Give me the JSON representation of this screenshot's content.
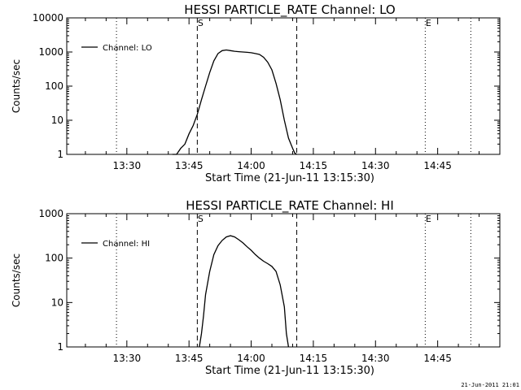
{
  "footer_text": "21-Jun-2011 21:01",
  "chart_data": [
    {
      "type": "line",
      "title": "HESSI PARTICLE_RATE Channel: LO",
      "xlabel": "Start Time (21-Jun-11 13:15:30)",
      "ylabel": "Counts/sec",
      "yscale": "log",
      "xlim": [
        "13:15:30",
        "15:00:00"
      ],
      "ylim": [
        1,
        10000
      ],
      "xticks": [
        "13:30",
        "13:45",
        "14:00",
        "14:15",
        "14:30",
        "14:45"
      ],
      "yticks": [
        "1",
        "10",
        "100",
        "1000",
        "10000"
      ],
      "legend": "top-left",
      "legend_label": "Channel: LO",
      "markers": [
        {
          "label": "",
          "time": "13:27:30",
          "style": "dotted"
        },
        {
          "label": "S",
          "time": "13:47:00",
          "style": "dashed"
        },
        {
          "label": "",
          "time": "14:11:00",
          "style": "dashed"
        },
        {
          "label": "E",
          "time": "14:42:00",
          "style": "dotted"
        },
        {
          "label": "",
          "time": "14:53:00",
          "style": "dotted"
        }
      ],
      "series": [
        {
          "name": "Channel: LO",
          "x": [
            "13:41:00",
            "13:42:00",
            "13:43:00",
            "13:44:00",
            "13:45:00",
            "13:46:00",
            "13:47:00",
            "13:48:00",
            "13:49:00",
            "13:50:00",
            "13:51:00",
            "13:52:00",
            "13:53:00",
            "13:54:00",
            "13:55:00",
            "13:56:00",
            "13:57:00",
            "13:58:00",
            "13:59:00",
            "14:00:00",
            "14:01:00",
            "14:02:00",
            "14:03:00",
            "14:04:00",
            "14:05:00",
            "14:06:00",
            "14:07:00",
            "14:08:00",
            "14:09:00",
            "14:10:00",
            "14:10:30",
            "14:11:00"
          ],
          "values": [
            1.0,
            1.0,
            1.5,
            2.0,
            4.0,
            7.0,
            15,
            40,
            100,
            250,
            550,
            900,
            1100,
            1150,
            1100,
            1050,
            1020,
            1000,
            980,
            950,
            900,
            850,
            700,
            500,
            300,
            120,
            40,
            10,
            3,
            1.5,
            1.1,
            1.0
          ]
        }
      ]
    },
    {
      "type": "line",
      "title": "HESSI PARTICLE_RATE Channel: HI",
      "xlabel": "Start Time (21-Jun-11 13:15:30)",
      "ylabel": "Counts/sec",
      "yscale": "log",
      "xlim": [
        "13:15:30",
        "15:00:00"
      ],
      "ylim": [
        1,
        1000
      ],
      "xticks": [
        "13:30",
        "13:45",
        "14:00",
        "14:15",
        "14:30",
        "14:45"
      ],
      "yticks": [
        "1",
        "10",
        "100",
        "1000"
      ],
      "legend": "top-left",
      "legend_label": "Channel: HI",
      "markers": [
        {
          "label": "",
          "time": "13:27:30",
          "style": "dotted"
        },
        {
          "label": "S",
          "time": "13:47:00",
          "style": "dashed"
        },
        {
          "label": "",
          "time": "14:11:00",
          "style": "dashed"
        },
        {
          "label": "E",
          "time": "14:42:00",
          "style": "dotted"
        },
        {
          "label": "",
          "time": "14:53:00",
          "style": "dotted"
        }
      ],
      "series": [
        {
          "name": "Channel: HI",
          "x": [
            "13:47:30",
            "13:48:00",
            "13:48:30",
            "13:49:00",
            "13:50:00",
            "13:51:00",
            "13:52:00",
            "13:53:00",
            "13:54:00",
            "13:55:00",
            "13:56:00",
            "13:57:00",
            "13:58:00",
            "13:59:00",
            "14:00:00",
            "14:01:00",
            "14:02:00",
            "14:03:00",
            "14:04:00",
            "14:05:00",
            "14:06:00",
            "14:07:00",
            "14:08:00",
            "14:08:30",
            "14:09:00"
          ],
          "values": [
            1.0,
            2.0,
            5.0,
            15,
            50,
            120,
            190,
            250,
            300,
            320,
            300,
            260,
            220,
            180,
            150,
            120,
            100,
            85,
            75,
            65,
            50,
            25,
            8,
            2.0,
            1.0
          ]
        }
      ]
    }
  ]
}
